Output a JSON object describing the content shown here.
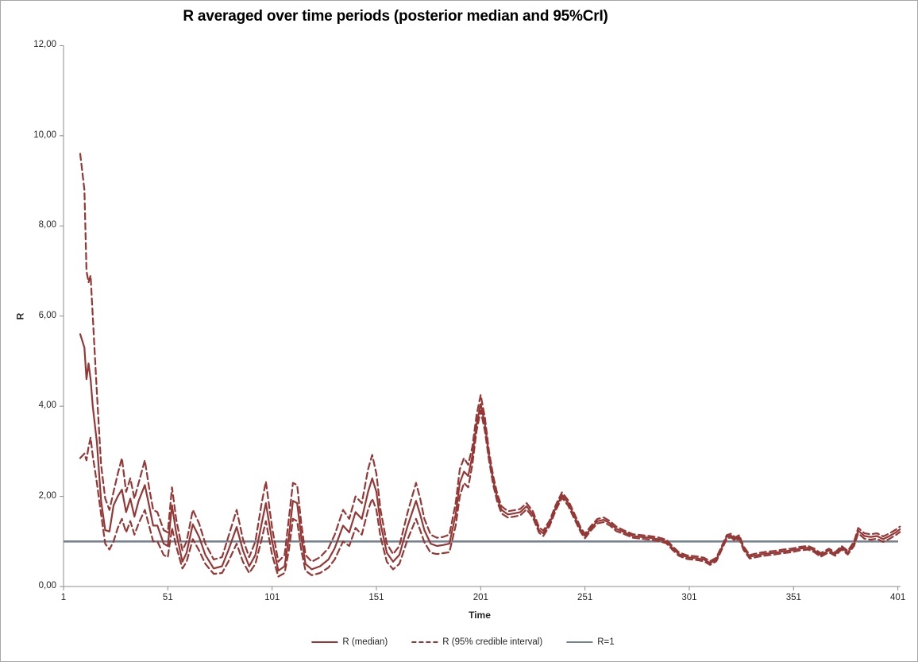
{
  "title": "R averaged over time periods (posterior median and 95%CrI)",
  "axes": {
    "x_title": "Time",
    "y_title": "R"
  },
  "legend": {
    "items": [
      {
        "label": "R (median)",
        "style": "solid",
        "color": "#953735"
      },
      {
        "label": "R (95% credible interval)",
        "style": "dashed",
        "color": "#953735"
      },
      {
        "label": "R=1",
        "style": "solid",
        "color": "#76828E"
      }
    ]
  },
  "colors": {
    "series": "#953735",
    "reference": "#76828E",
    "axis": "#8C8C8C",
    "border": "#A6A6A6",
    "text": "#262626",
    "title_text": "#000000"
  },
  "chart_data": {
    "type": "line",
    "title": "R averaged over time periods (posterior median and 95%CrI)",
    "xlabel": "Time",
    "ylabel": "R",
    "x_tick_labels": [
      "1",
      "51",
      "101",
      "151",
      "201",
      "251",
      "301",
      "351",
      "401"
    ],
    "x_tick_values": [
      1,
      51,
      101,
      151,
      201,
      251,
      301,
      351,
      401
    ],
    "y_tick_labels": [
      "0,00",
      "2,00",
      "4,00",
      "6,00",
      "8,00",
      "10,00",
      "12,00"
    ],
    "y_tick_values": [
      0,
      2,
      4,
      6,
      8,
      10,
      12
    ],
    "x_range": [
      1,
      403
    ],
    "y_range": [
      0,
      12
    ],
    "grid": false,
    "legend_position": "bottom",
    "reference_line": {
      "label": "R=1",
      "value": 1
    },
    "series_names": [
      "R (median)",
      "R 95% CrI lower",
      "R 95% CrI upper"
    ],
    "points_columns": [
      "time",
      "lower95",
      "median",
      "upper95"
    ],
    "points": [
      [
        9,
        2.85,
        5.6,
        9.6
      ],
      [
        11,
        2.95,
        5.3,
        8.8
      ],
      [
        12,
        2.8,
        4.6,
        7.0
      ],
      [
        13,
        3.1,
        4.95,
        6.75
      ],
      [
        14,
        3.3,
        4.6,
        6.9
      ],
      [
        15,
        2.9,
        4.0,
        6.0
      ],
      [
        17,
        2.3,
        3.2,
        4.3
      ],
      [
        19,
        1.6,
        1.9,
        2.7
      ],
      [
        21,
        0.95,
        1.25,
        1.95
      ],
      [
        23,
        0.82,
        1.22,
        1.7
      ],
      [
        25,
        1.0,
        1.8,
        2.1
      ],
      [
        27,
        1.3,
        2.0,
        2.5
      ],
      [
        29,
        1.5,
        2.15,
        2.85
      ],
      [
        31,
        1.2,
        1.65,
        2.1
      ],
      [
        33,
        1.45,
        1.95,
        2.4
      ],
      [
        35,
        1.15,
        1.55,
        1.95
      ],
      [
        37,
        1.4,
        1.9,
        2.3
      ],
      [
        40,
        1.7,
        2.25,
        2.8
      ],
      [
        42,
        1.35,
        1.8,
        2.2
      ],
      [
        44,
        1.0,
        1.35,
        1.7
      ],
      [
        46,
        1.0,
        1.35,
        1.65
      ],
      [
        49,
        0.7,
        0.95,
        1.25
      ],
      [
        51,
        0.65,
        0.9,
        1.2
      ],
      [
        53,
        1.3,
        1.8,
        2.2
      ],
      [
        55,
        0.9,
        1.2,
        1.5
      ],
      [
        58,
        0.4,
        0.55,
        0.8
      ],
      [
        60,
        0.55,
        0.75,
        1.0
      ],
      [
        63,
        1.05,
        1.38,
        1.7
      ],
      [
        66,
        0.8,
        1.1,
        1.4
      ],
      [
        69,
        0.5,
        0.7,
        0.95
      ],
      [
        73,
        0.28,
        0.4,
        0.6
      ],
      [
        77,
        0.3,
        0.45,
        0.65
      ],
      [
        80,
        0.55,
        0.8,
        1.1
      ],
      [
        84,
        0.95,
        1.32,
        1.7
      ],
      [
        87,
        0.55,
        0.8,
        1.05
      ],
      [
        90,
        0.3,
        0.45,
        0.65
      ],
      [
        93,
        0.5,
        0.7,
        1.0
      ],
      [
        96,
        1.05,
        1.4,
        1.85
      ],
      [
        98,
        1.45,
        1.85,
        2.33
      ],
      [
        101,
        0.7,
        1.0,
        1.3
      ],
      [
        104,
        0.22,
        0.35,
        0.55
      ],
      [
        107,
        0.3,
        0.45,
        0.7
      ],
      [
        109,
        0.8,
        1.1,
        1.5
      ],
      [
        111,
        1.5,
        1.9,
        2.3
      ],
      [
        113,
        1.45,
        1.85,
        2.25
      ],
      [
        115,
        0.8,
        1.1,
        1.4
      ],
      [
        117,
        0.35,
        0.5,
        0.7
      ],
      [
        120,
        0.25,
        0.38,
        0.55
      ],
      [
        124,
        0.3,
        0.45,
        0.65
      ],
      [
        128,
        0.42,
        0.6,
        0.85
      ],
      [
        131,
        0.6,
        0.85,
        1.15
      ],
      [
        135,
        1.0,
        1.35,
        1.7
      ],
      [
        138,
        0.9,
        1.2,
        1.5
      ],
      [
        141,
        1.3,
        1.65,
        2.0
      ],
      [
        144,
        1.15,
        1.5,
        1.85
      ],
      [
        147,
        1.7,
        2.1,
        2.6
      ],
      [
        149,
        1.95,
        2.4,
        2.92
      ],
      [
        151,
        1.7,
        2.1,
        2.5
      ],
      [
        153,
        1.1,
        1.4,
        1.7
      ],
      [
        156,
        0.55,
        0.75,
        0.95
      ],
      [
        159,
        0.38,
        0.55,
        0.72
      ],
      [
        162,
        0.5,
        0.7,
        0.9
      ],
      [
        166,
        1.05,
        1.35,
        1.65
      ],
      [
        170,
        1.5,
        1.9,
        2.3
      ],
      [
        172,
        1.25,
        1.6,
        1.95
      ],
      [
        174,
        0.98,
        1.25,
        1.5
      ],
      [
        177,
        0.75,
        0.95,
        1.15
      ],
      [
        180,
        0.72,
        0.9,
        1.08
      ],
      [
        183,
        0.74,
        0.92,
        1.1
      ],
      [
        186,
        0.76,
        0.95,
        1.15
      ],
      [
        189,
        1.35,
        1.6,
        1.85
      ],
      [
        191,
        2.0,
        2.3,
        2.6
      ],
      [
        193,
        2.3,
        2.55,
        2.85
      ],
      [
        195,
        2.2,
        2.45,
        2.7
      ],
      [
        197,
        2.7,
        2.9,
        3.1
      ],
      [
        199,
        3.45,
        3.6,
        3.8
      ],
      [
        201,
        3.9,
        4.05,
        4.25
      ],
      [
        203,
        3.45,
        3.6,
        3.75
      ],
      [
        205,
        2.8,
        2.9,
        3.0
      ],
      [
        207,
        2.25,
        2.35,
        2.45
      ],
      [
        209,
        1.87,
        1.95,
        2.05
      ],
      [
        211,
        1.62,
        1.7,
        1.78
      ],
      [
        214,
        1.53,
        1.6,
        1.67
      ],
      [
        217,
        1.55,
        1.62,
        1.69
      ],
      [
        220,
        1.58,
        1.65,
        1.72
      ],
      [
        223,
        1.71,
        1.78,
        1.85
      ],
      [
        226,
        1.53,
        1.6,
        1.67
      ],
      [
        229,
        1.19,
        1.25,
        1.31
      ],
      [
        231,
        1.12,
        1.18,
        1.24
      ],
      [
        234,
        1.34,
        1.4,
        1.46
      ],
      [
        237,
        1.69,
        1.75,
        1.81
      ],
      [
        240,
        1.97,
        2.03,
        2.09
      ],
      [
        243,
        1.79,
        1.85,
        1.91
      ],
      [
        246,
        1.49,
        1.55,
        1.61
      ],
      [
        249,
        1.2,
        1.25,
        1.3
      ],
      [
        251,
        1.07,
        1.12,
        1.17
      ],
      [
        254,
        1.25,
        1.3,
        1.35
      ],
      [
        257,
        1.4,
        1.45,
        1.5
      ],
      [
        260,
        1.43,
        1.48,
        1.53
      ],
      [
        263,
        1.35,
        1.4,
        1.45
      ],
      [
        266,
        1.23,
        1.28,
        1.33
      ],
      [
        270,
        1.16,
        1.2,
        1.24
      ],
      [
        274,
        1.08,
        1.12,
        1.16
      ],
      [
        278,
        1.06,
        1.1,
        1.14
      ],
      [
        282,
        1.04,
        1.08,
        1.12
      ],
      [
        286,
        1.01,
        1.05,
        1.09
      ],
      [
        290,
        0.96,
        1.0,
        1.04
      ],
      [
        293,
        0.81,
        0.85,
        0.89
      ],
      [
        296,
        0.68,
        0.72,
        0.76
      ],
      [
        300,
        0.61,
        0.65,
        0.69
      ],
      [
        304,
        0.59,
        0.63,
        0.67
      ],
      [
        308,
        0.56,
        0.6,
        0.64
      ],
      [
        311,
        0.48,
        0.52,
        0.56
      ],
      [
        314,
        0.56,
        0.6,
        0.64
      ],
      [
        317,
        0.86,
        0.9,
        0.94
      ],
      [
        319,
        1.06,
        1.1,
        1.14
      ],
      [
        321,
        1.09,
        1.13,
        1.17
      ],
      [
        323,
        1.01,
        1.05,
        1.09
      ],
      [
        325,
        1.06,
        1.1,
        1.14
      ],
      [
        327,
        0.81,
        0.85,
        0.89
      ],
      [
        330,
        0.62,
        0.66,
        0.7
      ],
      [
        334,
        0.66,
        0.7,
        0.74
      ],
      [
        338,
        0.69,
        0.73,
        0.77
      ],
      [
        342,
        0.71,
        0.75,
        0.79
      ],
      [
        346,
        0.74,
        0.78,
        0.82
      ],
      [
        350,
        0.76,
        0.8,
        0.84
      ],
      [
        354,
        0.8,
        0.84,
        0.88
      ],
      [
        358,
        0.82,
        0.86,
        0.9
      ],
      [
        361,
        0.76,
        0.8,
        0.84
      ],
      [
        364,
        0.66,
        0.7,
        0.74
      ],
      [
        368,
        0.76,
        0.8,
        0.84
      ],
      [
        371,
        0.68,
        0.72,
        0.76
      ],
      [
        374,
        0.82,
        0.86,
        0.9
      ],
      [
        377,
        0.71,
        0.75,
        0.79
      ],
      [
        380,
        0.9,
        0.95,
        1.0
      ],
      [
        382,
        1.18,
        1.24,
        1.3
      ],
      [
        385,
        1.06,
        1.12,
        1.18
      ],
      [
        388,
        1.04,
        1.1,
        1.16
      ],
      [
        391,
        1.06,
        1.12,
        1.18
      ],
      [
        394,
        0.99,
        1.05,
        1.11
      ],
      [
        397,
        1.06,
        1.12,
        1.18
      ],
      [
        400,
        1.14,
        1.2,
        1.26
      ],
      [
        402,
        1.21,
        1.27,
        1.33
      ]
    ]
  }
}
